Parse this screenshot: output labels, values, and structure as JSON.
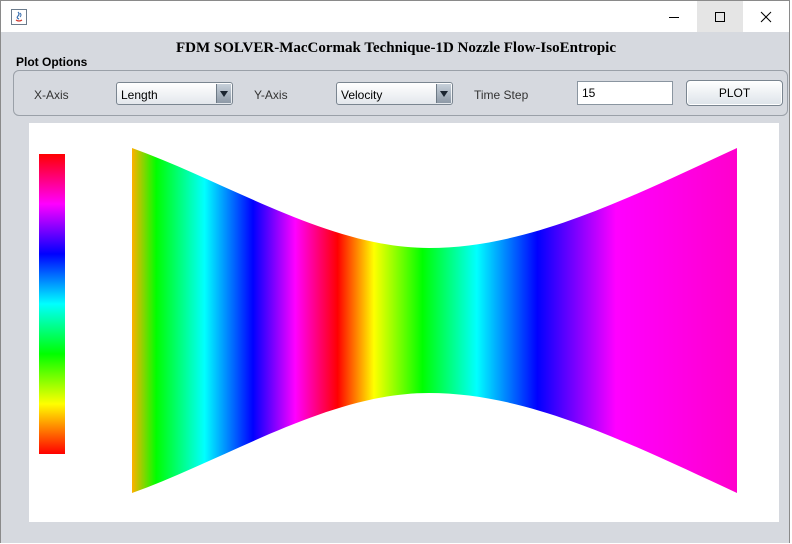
{
  "window": {
    "controls": {
      "minimize": "minimize-icon",
      "maximize": "maximize-icon",
      "close": "close-icon"
    }
  },
  "app": {
    "title": "FDM SOLVER-MacCormak Technique-1D Nozzle Flow-IsoEntropic"
  },
  "plot_options": {
    "label": "Plot Options",
    "x_axis_label": "X-Axis",
    "x_axis_value": "Length",
    "y_axis_label": "Y-Axis",
    "y_axis_value": "Velocity",
    "time_step_label": "Time Step",
    "time_step_value": "15",
    "plot_button": "PLOT"
  },
  "plot": {
    "legend_colors": [
      "#ff0000",
      "#ffff00",
      "#00ff00",
      "#00ffff",
      "#0000ff",
      "#ff00ff",
      "#ff0000"
    ],
    "nozzle_colors": [
      {
        "pos": 0.0,
        "color": "#ffb000"
      },
      {
        "pos": 0.04,
        "color": "#00ff00"
      },
      {
        "pos": 0.12,
        "color": "#00ffff"
      },
      {
        "pos": 0.2,
        "color": "#0000ff"
      },
      {
        "pos": 0.27,
        "color": "#ff00ff"
      },
      {
        "pos": 0.34,
        "color": "#ff0000"
      },
      {
        "pos": 0.4,
        "color": "#ffff00"
      },
      {
        "pos": 0.48,
        "color": "#00ff00"
      },
      {
        "pos": 0.57,
        "color": "#00ffff"
      },
      {
        "pos": 0.67,
        "color": "#0000ff"
      },
      {
        "pos": 0.8,
        "color": "#ff00ff"
      },
      {
        "pos": 1.0,
        "color": "#ff00cc"
      }
    ]
  }
}
